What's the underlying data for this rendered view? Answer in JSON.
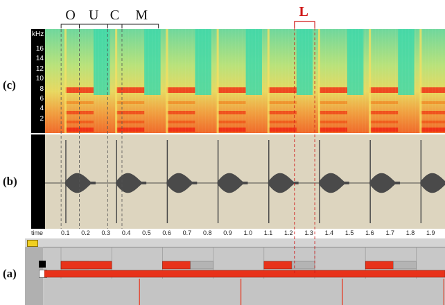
{
  "segments": [
    {
      "label": "O",
      "bracket": [
        0.08,
        0.17
      ]
    },
    {
      "label": "U",
      "bracket": [
        0.17,
        0.31
      ]
    },
    {
      "label": "C",
      "bracket": [
        0.31,
        0.38
      ]
    },
    {
      "label": "M",
      "bracket": [
        0.38,
        0.56
      ]
    }
  ],
  "loop_label": "L",
  "loop_range": [
    1.23,
    1.33
  ],
  "panels": {
    "c": "(c)",
    "b": "(b)",
    "a": "(a)"
  },
  "spectrogram": {
    "unit": "kHz",
    "ticks": [
      {
        "v": 2,
        "label": "2"
      },
      {
        "v": 4,
        "label": "4"
      },
      {
        "v": 6,
        "label": "6"
      },
      {
        "v": 8,
        "label": "8"
      },
      {
        "v": 10,
        "label": "10"
      },
      {
        "v": 12,
        "label": "12"
      },
      {
        "v": 14,
        "label": "14"
      },
      {
        "v": 16,
        "label": "16"
      }
    ]
  },
  "timeline": {
    "label": "time",
    "ticks": [
      {
        "v": 0.1,
        "label": "0.1"
      },
      {
        "v": 0.2,
        "label": "0.2"
      },
      {
        "v": 0.3,
        "label": "0.3"
      },
      {
        "v": 0.4,
        "label": "0.4"
      },
      {
        "v": 0.5,
        "label": "0.5"
      },
      {
        "v": 0.6,
        "label": "0.6"
      },
      {
        "v": 0.7,
        "label": "0.7"
      },
      {
        "v": 0.8,
        "label": "0.8"
      },
      {
        "v": 0.9,
        "label": "0.9"
      },
      {
        "v": 1.0,
        "label": "1.0"
      },
      {
        "v": 1.1,
        "label": "1.1"
      },
      {
        "v": 1.2,
        "label": "1.2"
      },
      {
        "v": 1.3,
        "label": "1.3"
      },
      {
        "v": 1.4,
        "label": "1.4"
      },
      {
        "v": 1.5,
        "label": "1.5"
      },
      {
        "v": 1.6,
        "label": "1.6"
      },
      {
        "v": 1.7,
        "label": "1.7"
      },
      {
        "v": 1.8,
        "label": "1.8"
      },
      {
        "v": 1.9,
        "label": "1.9"
      }
    ]
  },
  "pulse_onsets": [
    0.1,
    0.35,
    0.6,
    0.85,
    1.1,
    1.35,
    1.6,
    1.85
  ],
  "colors": {
    "red": "#e8321a",
    "gray": "#b4b4b4",
    "spec_base": "#e6e060",
    "spec_cyan": "#3fd8a8",
    "wave": "#4a4a4a",
    "wave_bg": "#ddd5bf"
  }
}
